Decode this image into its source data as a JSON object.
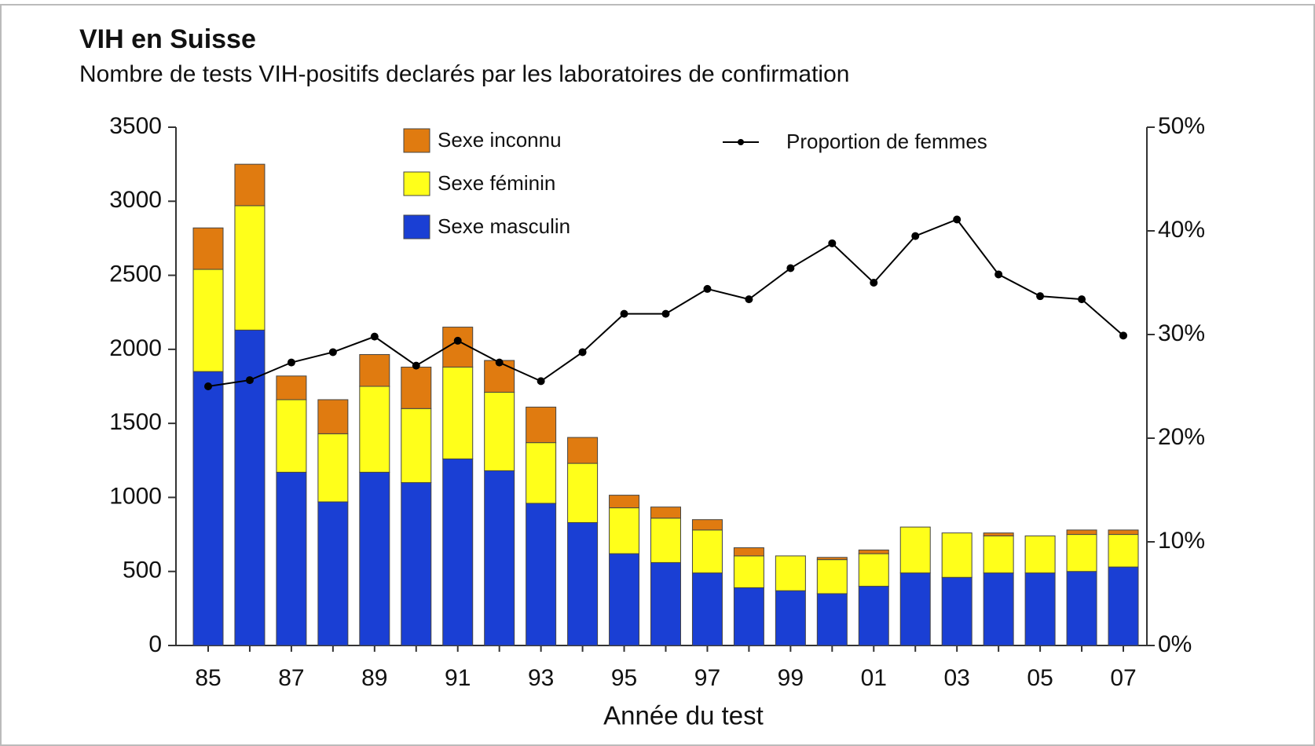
{
  "chart_data": {
    "type": "bar",
    "title": "VIH en Suisse",
    "subtitle": "Nombre de tests VIH-positifs declarés par les laboratoires de confirmation",
    "x_label": "Année du test",
    "categories": [
      "85",
      null,
      "87",
      null,
      "89",
      null,
      "91",
      null,
      "93",
      null,
      "95",
      null,
      "97",
      null,
      "99",
      null,
      "01",
      null,
      "03",
      null,
      "05",
      null,
      "07"
    ],
    "series": [
      {
        "name": "Sexe masculin",
        "color": "#1a3fd4",
        "values": [
          1850,
          2130,
          1170,
          970,
          1170,
          1100,
          1260,
          1180,
          960,
          830,
          620,
          560,
          490,
          390,
          370,
          350,
          400,
          490,
          460,
          490,
          490,
          500,
          530
        ]
      },
      {
        "name": "Sexe féminin",
        "color": "#ffff1a",
        "values": [
          690,
          840,
          490,
          460,
          580,
          500,
          620,
          530,
          410,
          400,
          310,
          300,
          290,
          215,
          235,
          230,
          220,
          310,
          300,
          250,
          250,
          250,
          220
        ]
      },
      {
        "name": "Sexe inconnu",
        "color": "#e07b10",
        "values": [
          280,
          280,
          160,
          230,
          215,
          280,
          270,
          215,
          240,
          175,
          85,
          75,
          70,
          55,
          0,
          15,
          25,
          0,
          0,
          20,
          0,
          30,
          30
        ]
      },
      {
        "name": "Proportion de femmes",
        "color": "#000000",
        "type": "line",
        "axis": "y2",
        "values": [
          25,
          25.6,
          27.3,
          28.3,
          29.8,
          27.0,
          29.4,
          27.3,
          25.5,
          28.3,
          32.0,
          32.0,
          34.4,
          33.4,
          36.4,
          38.8,
          35.0,
          39.5,
          41.1,
          35.8,
          33.7,
          33.4,
          29.9
        ]
      }
    ],
    "ylim": [
      0,
      3500
    ],
    "yticks": [
      0,
      500,
      1000,
      1500,
      2000,
      2500,
      3000,
      3500
    ],
    "y2lim": [
      0,
      50
    ],
    "y2ticks": [
      {
        "value": 0,
        "label": "0%"
      },
      {
        "value": 10,
        "label": "10%"
      },
      {
        "value": 20,
        "label": "20%"
      },
      {
        "value": 30,
        "label": "30%"
      },
      {
        "value": 40,
        "label": "40%"
      },
      {
        "value": 50,
        "label": "50%"
      }
    ],
    "grid": false
  }
}
